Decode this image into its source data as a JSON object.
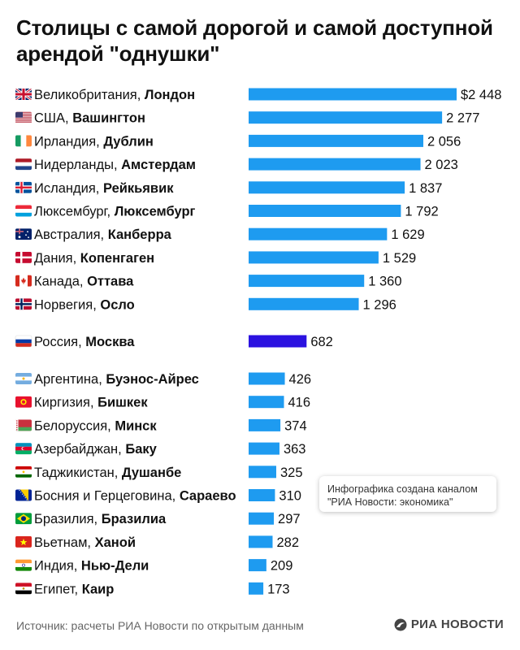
{
  "title": "Столицы с самой дорогой и самой доступной арендой \"однушки\"",
  "note": {
    "line1": "Инфографика создана каналом",
    "line2": "\"РИА Новости: экономика\""
  },
  "source": "Источник: расчеты РИА Новости по открытым данным",
  "logo": "РИА НОВОСТИ",
  "colors": {
    "bar": "#1e9bf0",
    "highlight": "#2b12e0",
    "text": "#111111"
  },
  "chart_data": {
    "type": "bar",
    "orientation": "horizontal",
    "groups": [
      {
        "rows": [
          {
            "country": "Великобритания",
            "city": "Лондон",
            "value": 2448,
            "label": "$2 448",
            "flag": "uk-flag-icon"
          },
          {
            "country": "США",
            "city": "Вашингтон",
            "value": 2277,
            "label": "2 277",
            "flag": "usa-flag-icon"
          },
          {
            "country": "Ирландия",
            "city": "Дублин",
            "value": 2056,
            "label": "2 056",
            "flag": "ireland-flag-icon"
          },
          {
            "country": "Нидерланды",
            "city": "Амстердам",
            "value": 2023,
            "label": "2 023",
            "flag": "netherlands-flag-icon"
          },
          {
            "country": "Исландия",
            "city": "Рейкьявик",
            "value": 1837,
            "label": "1 837",
            "flag": "iceland-flag-icon"
          },
          {
            "country": "Люксембург",
            "city": "Люксембург",
            "value": 1792,
            "label": "1 792",
            "flag": "luxembourg-flag-icon"
          },
          {
            "country": "Австралия",
            "city": "Канберра",
            "value": 1629,
            "label": "1 629",
            "flag": "australia-flag-icon"
          },
          {
            "country": "Дания",
            "city": "Копенгаген",
            "value": 1529,
            "label": "1 529",
            "flag": "denmark-flag-icon"
          },
          {
            "country": "Канада",
            "city": "Оттава",
            "value": 1360,
            "label": "1 360",
            "flag": "canada-flag-icon"
          },
          {
            "country": "Норвегия",
            "city": "Осло",
            "value": 1296,
            "label": "1 296",
            "flag": "norway-flag-icon"
          }
        ]
      },
      {
        "rows": [
          {
            "country": "Россия",
            "city": "Москва",
            "value": 682,
            "label": "682",
            "flag": "russia-flag-icon",
            "highlight": true
          }
        ]
      },
      {
        "rows": [
          {
            "country": "Аргентина",
            "city": "Буэнос-Айрес",
            "value": 426,
            "label": "426",
            "flag": "argentina-flag-icon"
          },
          {
            "country": "Киргизия",
            "city": "Бишкек",
            "value": 416,
            "label": "416",
            "flag": "kyrgyzstan-flag-icon"
          },
          {
            "country": "Белоруссия",
            "city": "Минск",
            "value": 374,
            "label": "374",
            "flag": "belarus-flag-icon"
          },
          {
            "country": "Азербайджан",
            "city": "Баку",
            "value": 363,
            "label": "363",
            "flag": "azerbaijan-flag-icon"
          },
          {
            "country": "Таджикистан",
            "city": "Душанбе",
            "value": 325,
            "label": "325",
            "flag": "tajikistan-flag-icon"
          },
          {
            "country": "Босния и Герцеговина",
            "city": "Сараево",
            "value": 310,
            "label": "310",
            "flag": "bosnia-flag-icon"
          },
          {
            "country": "Бразилия",
            "city": "Бразилиа",
            "value": 297,
            "label": "297",
            "flag": "brazil-flag-icon"
          },
          {
            "country": "Вьетнам",
            "city": "Ханой",
            "value": 282,
            "label": "282",
            "flag": "vietnam-flag-icon"
          },
          {
            "country": "Индия",
            "city": "Нью-Дели",
            "value": 209,
            "label": "209",
            "flag": "india-flag-icon"
          },
          {
            "country": "Египет",
            "city": "Каир",
            "value": 173,
            "label": "173",
            "flag": "egypt-flag-icon"
          }
        ]
      }
    ]
  }
}
